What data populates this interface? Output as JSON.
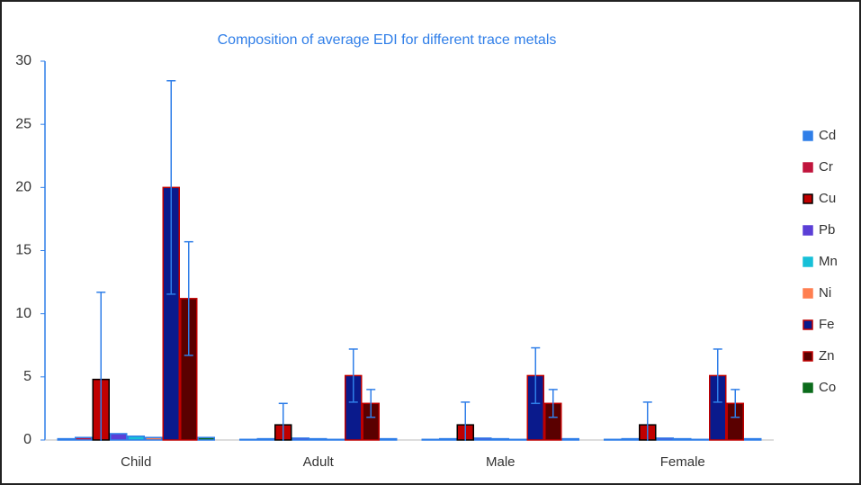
{
  "chart_data": {
    "type": "bar",
    "title": "Composition of average EDI for different trace metals",
    "categories": [
      "Child",
      "Adult",
      "Male",
      "Female"
    ],
    "series": [
      {
        "name": "Cd",
        "color": "#2f7ee8",
        "edgecolor": "#2f7ee8",
        "values": [
          0.1,
          0.05,
          0.05,
          0.05
        ],
        "errors": [
          null,
          null,
          null,
          null
        ]
      },
      {
        "name": "Cr",
        "color": "#c0143c",
        "edgecolor": "#2f7ee8",
        "values": [
          0.2,
          0.1,
          0.1,
          0.1
        ],
        "errors": [
          null,
          null,
          null,
          null
        ]
      },
      {
        "name": "Cu",
        "color": "#c00000",
        "edgecolor": "#000000",
        "values": [
          4.8,
          1.2,
          1.2,
          1.2
        ],
        "errors": [
          6.9,
          1.7,
          1.8,
          1.8
        ]
      },
      {
        "name": "Pb",
        "color": "#5b3fd6",
        "edgecolor": "#2f7ee8",
        "values": [
          0.5,
          0.15,
          0.15,
          0.15
        ],
        "errors": [
          null,
          null,
          null,
          null
        ]
      },
      {
        "name": "Mn",
        "color": "#17c0d8",
        "edgecolor": "#2f7ee8",
        "values": [
          0.3,
          0.1,
          0.1,
          0.1
        ],
        "errors": [
          null,
          null,
          null,
          null
        ]
      },
      {
        "name": "Ni",
        "color": "#ff7f50",
        "edgecolor": "#2f7ee8",
        "values": [
          0.2,
          0.05,
          0.05,
          0.05
        ],
        "errors": [
          null,
          null,
          null,
          null
        ]
      },
      {
        "name": "Fe",
        "color": "#0a1a8c",
        "edgecolor": "#c00000",
        "values": [
          20,
          5.1,
          5.1,
          5.1
        ],
        "errors": [
          8.45,
          2.1,
          2.2,
          2.1
        ]
      },
      {
        "name": "Zn",
        "color": "#5a0000",
        "edgecolor": "#c00000",
        "values": [
          11.2,
          2.9,
          2.9,
          2.9
        ],
        "errors": [
          4.5,
          1.1,
          1.1,
          1.1
        ]
      },
      {
        "name": "Co",
        "color": "#0b6b1b",
        "edgecolor": "#2f7ee8",
        "values": [
          0.2,
          0.1,
          0.1,
          0.1
        ],
        "errors": [
          null,
          null,
          null,
          null
        ]
      }
    ],
    "ylim": [
      0,
      30
    ],
    "yticks": [
      0,
      5,
      10,
      15,
      20,
      25,
      30
    ],
    "error_color": "#2f7ee8",
    "legend": "right"
  }
}
